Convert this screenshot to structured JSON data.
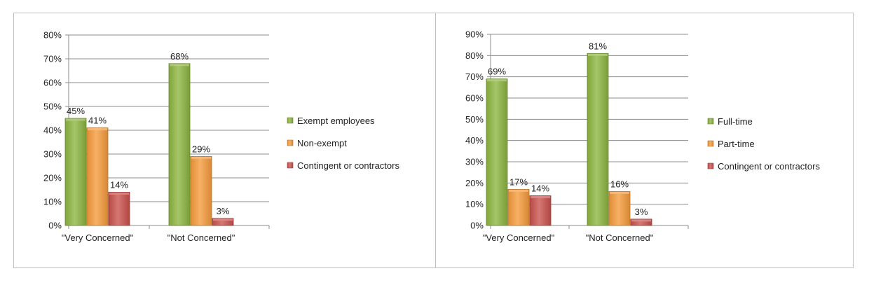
{
  "chart_data": [
    {
      "type": "bar",
      "categories": [
        "\"Very Concerned\"",
        "\"Not Concerned\""
      ],
      "series": [
        {
          "name": "Exempt employees",
          "values": [
            45,
            68
          ],
          "labels": [
            "45%",
            "68%"
          ],
          "color": "#8cb43f"
        },
        {
          "name": "Non-exempt",
          "values": [
            41,
            29
          ],
          "labels": [
            "41%",
            "29%"
          ],
          "color": "#f59a3a"
        },
        {
          "name": "Contingent or contractors",
          "values": [
            14,
            3
          ],
          "labels": [
            "14%",
            "3%"
          ],
          "color": "#c9504c"
        }
      ],
      "ylim": [
        0,
        80
      ],
      "yticks": [
        "0%",
        "10%",
        "20%",
        "30%",
        "40%",
        "50%",
        "60%",
        "70%",
        "80%"
      ],
      "grid": true,
      "legend": "right"
    },
    {
      "type": "bar",
      "categories": [
        "\"Very Concerned\"",
        "\"Not Concerned\""
      ],
      "series": [
        {
          "name": "Full-time",
          "values": [
            69,
            81
          ],
          "labels": [
            "69%",
            "81%"
          ],
          "color": "#8cb43f"
        },
        {
          "name": "Part-time",
          "values": [
            17,
            16
          ],
          "labels": [
            "17%",
            "16%"
          ],
          "color": "#f59a3a"
        },
        {
          "name": "Contingent or contractors",
          "values": [
            14,
            3
          ],
          "labels": [
            "14%",
            "3%"
          ],
          "color": "#c9504c"
        }
      ],
      "ylim": [
        0,
        90
      ],
      "yticks": [
        "0%",
        "10%",
        "20%",
        "30%",
        "40%",
        "50%",
        "60%",
        "70%",
        "80%",
        "90%"
      ],
      "grid": true,
      "legend": "right"
    }
  ]
}
